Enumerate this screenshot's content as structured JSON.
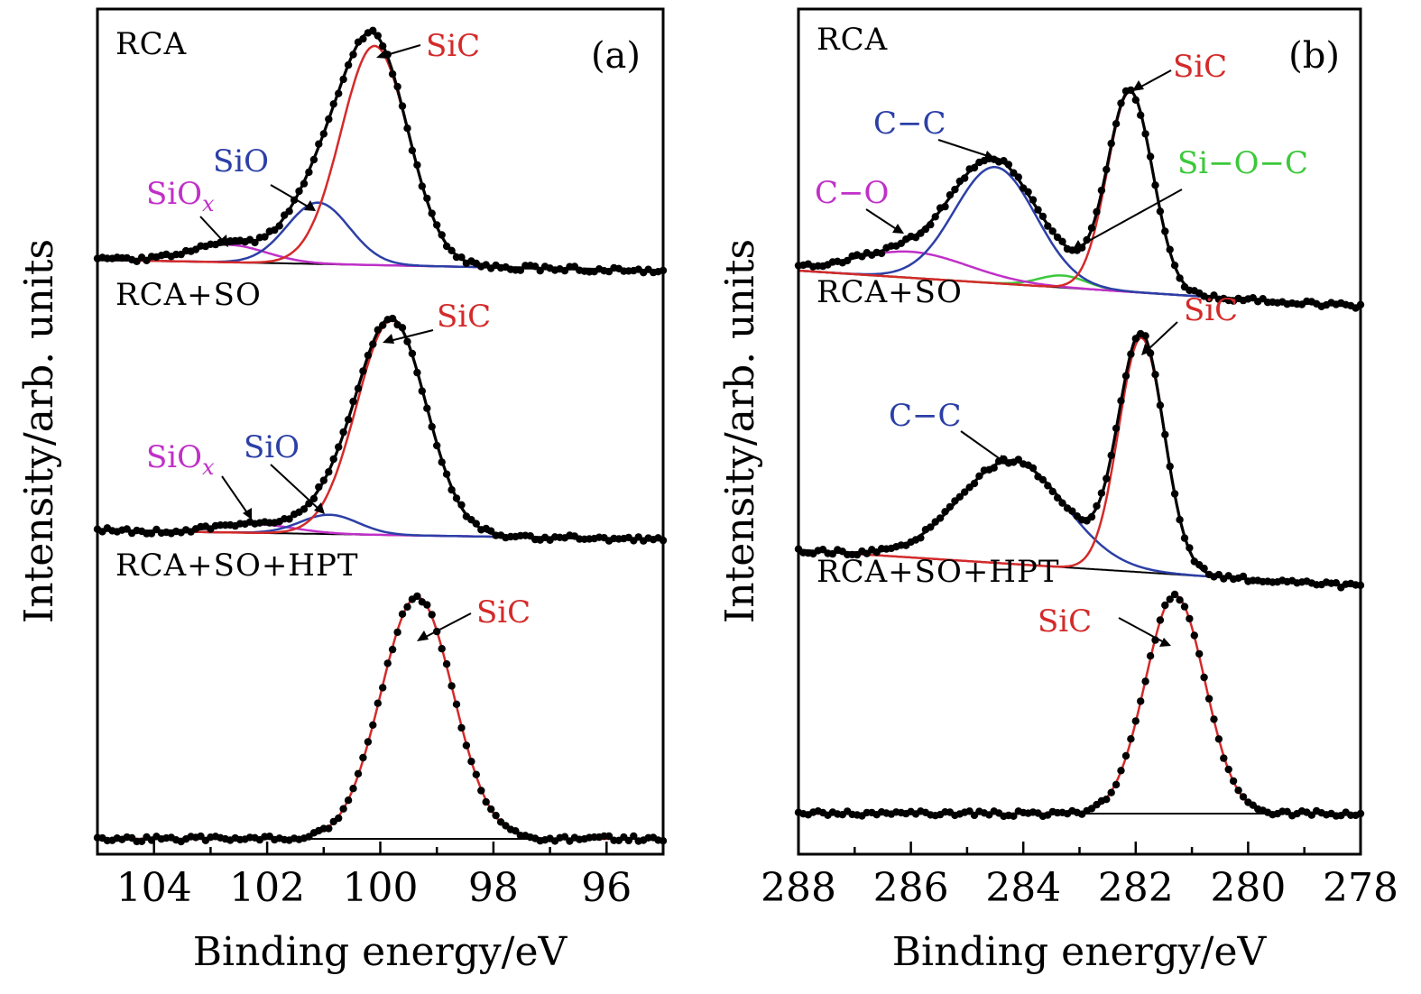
{
  "chart_data": [
    {
      "type": "line",
      "panel_label": "(a)",
      "xlabel": "Binding energy/eV",
      "ylabel": "Intensity/arb. units",
      "xlim": [
        105,
        95
      ],
      "x_ticks": [
        104,
        102,
        100,
        98,
        96
      ],
      "y_ticks": [],
      "colors": {
        "SiC": "#d42a2a",
        "SiO": "#2c3fa6",
        "SiOx": "#c030c8",
        "envelope": "#000000",
        "data": "#000000"
      },
      "spectra": [
        {
          "sample": "RCA",
          "peaks": [
            {
              "label": "SiC",
              "name": "SiC",
              "center": 100.1,
              "height": 1.0,
              "fwhm": 1.4
            },
            {
              "label": "SiO",
              "name": "SiO",
              "center": 101.1,
              "height": 0.28,
              "fwhm": 1.3
            },
            {
              "label": "SiO",
              "sub": "x",
              "name": "SiOx",
              "center": 102.7,
              "height": 0.08,
              "fwhm": 1.6
            }
          ]
        },
        {
          "sample": "RCA+SO",
          "peaks": [
            {
              "label": "SiC",
              "name": "SiC",
              "center": 99.8,
              "height": 1.0,
              "fwhm": 1.45
            },
            {
              "label": "SiO",
              "name": "SiO",
              "center": 100.9,
              "height": 0.09,
              "fwhm": 1.2
            },
            {
              "label": "SiO",
              "sub": "x",
              "name": "SiOx",
              "center": 102.2,
              "height": 0.04,
              "fwhm": 1.6
            }
          ]
        },
        {
          "sample": "RCA+SO+HPT",
          "peaks": [
            {
              "label": "SiC",
              "name": "SiC",
              "center": 99.35,
              "height": 1.0,
              "fwhm": 1.5
            }
          ]
        }
      ]
    },
    {
      "type": "line",
      "panel_label": "(b)",
      "xlabel": "Binding energy/eV",
      "ylabel": "Intensity/arb. units",
      "xlim": [
        288,
        278
      ],
      "x_ticks": [
        288,
        286,
        284,
        282,
        280,
        278
      ],
      "y_ticks": [],
      "colors": {
        "SiC": "#d42a2a",
        "C-C": "#2c3fa6",
        "C-O": "#c030c8",
        "Si-O-C": "#3cc83c",
        "envelope": "#000000",
        "data": "#000000"
      },
      "spectra": [
        {
          "sample": "RCA",
          "peaks": [
            {
              "label": "SiC",
              "name": "SiC",
              "center": 282.1,
              "height": 1.0,
              "fwhm": 0.95
            },
            {
              "label": "C−C",
              "name": "C-C",
              "center": 284.5,
              "height": 0.58,
              "fwhm": 1.7
            },
            {
              "label": "C−O",
              "name": "C-O",
              "center": 286.0,
              "height": 0.13,
              "fwhm": 2.4
            },
            {
              "label": "Si−O−C",
              "name": "Si-O-C",
              "center": 283.3,
              "height": 0.06,
              "fwhm": 1.0
            }
          ]
        },
        {
          "sample": "RCA+SO",
          "peaks": [
            {
              "label": "SiC",
              "name": "SiC",
              "center": 281.9,
              "height": 1.0,
              "fwhm": 0.95
            },
            {
              "label": "C−C",
              "name": "C-C",
              "center": 284.2,
              "height": 0.44,
              "fwhm": 2.2
            }
          ]
        },
        {
          "sample": "RCA+SO+HPT",
          "peaks": [
            {
              "label": "SiC",
              "name": "SiC",
              "center": 281.3,
              "height": 1.0,
              "fwhm": 1.25
            }
          ]
        }
      ]
    }
  ]
}
